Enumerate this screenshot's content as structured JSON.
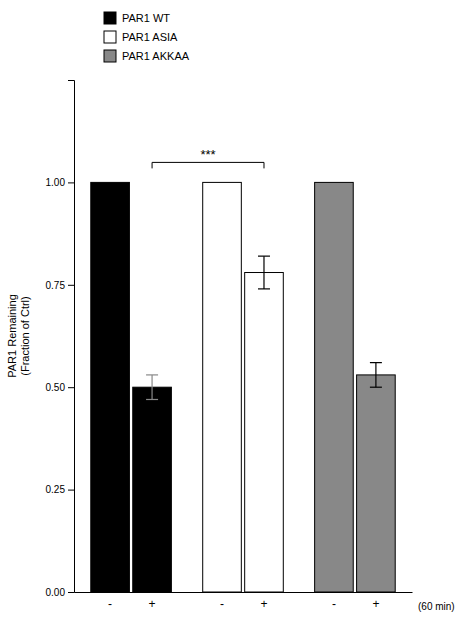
{
  "chart_data": {
    "type": "bar",
    "ylabel": "PAR1 Remaining\n(Fraction of Ctrl)",
    "categories": [
      "-",
      "+"
    ],
    "series": [
      {
        "name": "PAR1 WT",
        "color": "#000000",
        "values": [
          1.0,
          0.5
        ],
        "errors": [
          0.0,
          0.03
        ]
      },
      {
        "name": "PAR1 ASIA",
        "color": "#ffffff",
        "values": [
          1.0,
          0.78
        ],
        "errors": [
          0.0,
          0.04
        ]
      },
      {
        "name": "PAR1 AKKAA",
        "color": "#888888",
        "values": [
          1.0,
          0.53
        ],
        "errors": [
          0.0,
          0.03
        ]
      }
    ],
    "ylim": [
      0.0,
      1.25
    ],
    "yticks": [
      {
        "value": 0.0,
        "label": "0.00"
      },
      {
        "value": 0.25,
        "label": "0.25"
      },
      {
        "value": 0.5,
        "label": "0.50"
      },
      {
        "value": 0.75,
        "label": "0.75"
      },
      {
        "value": 1.0,
        "label": "1.00"
      }
    ],
    "grid": false,
    "legend": "top",
    "annotations": [
      {
        "text": "***"
      },
      {
        "text": "(60 min)"
      }
    ]
  }
}
